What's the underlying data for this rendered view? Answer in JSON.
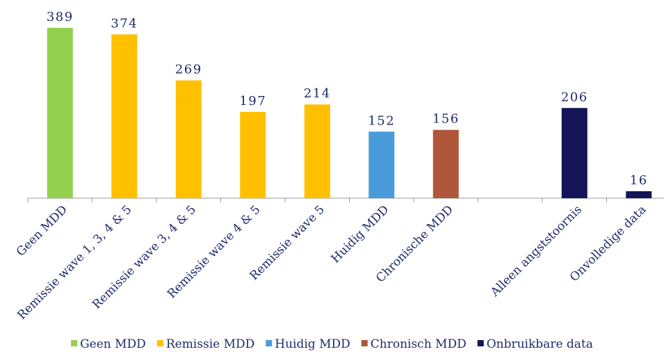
{
  "chart_data": {
    "type": "bar",
    "categories": [
      "Geen MDD",
      "Remissie wave 1, 3, 4 & 5",
      "Remissie wave 3, 4 & 5",
      "Remissie wave 4 & 5",
      "Remissie wave 5",
      "Huidig MDD",
      "Chronische MDD",
      null,
      "Alleen angststoornis",
      "Onvolledige data"
    ],
    "series": [
      {
        "name": "Geen MDD",
        "color": "#92d050",
        "values": [
          389,
          null,
          null,
          null,
          null,
          null,
          null,
          null,
          null,
          null
        ]
      },
      {
        "name": "Remissie MDD",
        "color": "#ffc000",
        "values": [
          null,
          374,
          269,
          197,
          214,
          null,
          null,
          null,
          null,
          null
        ]
      },
      {
        "name": "Huidig MDD",
        "color": "#4a9bd9",
        "values": [
          null,
          null,
          null,
          null,
          null,
          152,
          null,
          null,
          null,
          null
        ]
      },
      {
        "name": "Chronisch MDD",
        "color": "#b0573a",
        "values": [
          null,
          null,
          null,
          null,
          null,
          null,
          156,
          null,
          null,
          null
        ]
      },
      {
        "name": "Onbruikbare data",
        "color": "#141457",
        "values": [
          null,
          null,
          null,
          null,
          null,
          null,
          null,
          null,
          206,
          16
        ]
      }
    ],
    "legend": "bottom"
  }
}
